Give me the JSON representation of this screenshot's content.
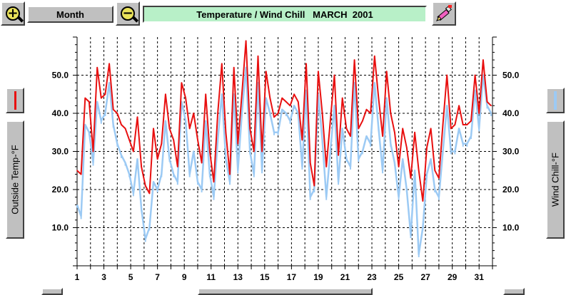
{
  "toolbar": {
    "month_label": "Month",
    "title": "Temperature / Wind Chill   MARCH  2001",
    "zoom_in_icon": "zoom-in-icon",
    "zoom_out_icon": "zoom-out-icon",
    "tool_icon": "pencil-paint-icon",
    "title_bg": "#b8f0c8"
  },
  "left_axis_button": {
    "label": "Outside Temp-°F",
    "color": "#e81010"
  },
  "right_axis_button": {
    "label": "Wind Chill-°F",
    "color": "#9ccaf4"
  },
  "chart_data": {
    "type": "line",
    "title": "Temperature / Wind Chill   MARCH  2001",
    "xlabel": "",
    "ylabel": "Outside Temp-°F",
    "ylabel_right": "Wind Chill-°F",
    "xlim": [
      1,
      32
    ],
    "ylim": [
      0,
      60
    ],
    "x_ticks": [
      "1",
      "3",
      "5",
      "7",
      "9",
      "11",
      "13",
      "15",
      "17",
      "19",
      "21",
      "23",
      "25",
      "27",
      "29",
      "31"
    ],
    "y_ticks": [
      "10.0",
      "20.0",
      "30.0",
      "40.0",
      "50.0"
    ],
    "grid": true,
    "series": [
      {
        "name": "Outside Temp-°F",
        "color": "#e81010",
        "x": [
          1.0,
          1.3,
          1.6,
          1.9,
          2.2,
          2.5,
          2.8,
          3.1,
          3.4,
          3.7,
          4.0,
          4.3,
          4.6,
          4.9,
          5.2,
          5.5,
          5.8,
          6.1,
          6.4,
          6.7,
          7.0,
          7.3,
          7.6,
          7.9,
          8.2,
          8.5,
          8.8,
          9.1,
          9.4,
          9.7,
          10.0,
          10.3,
          10.6,
          10.9,
          11.2,
          11.5,
          11.8,
          12.1,
          12.4,
          12.7,
          13.0,
          13.3,
          13.6,
          13.9,
          14.2,
          14.5,
          14.8,
          15.1,
          15.4,
          15.7,
          16.0,
          16.3,
          16.6,
          16.9,
          17.2,
          17.5,
          17.8,
          18.1,
          18.4,
          18.7,
          19.0,
          19.3,
          19.6,
          19.9,
          20.2,
          20.5,
          20.8,
          21.1,
          21.4,
          21.7,
          22.0,
          22.3,
          22.6,
          22.9,
          23.2,
          23.5,
          23.8,
          24.1,
          24.4,
          24.7,
          25.0,
          25.3,
          25.6,
          25.9,
          26.2,
          26.5,
          26.8,
          27.1,
          27.4,
          27.7,
          28.0,
          28.3,
          28.6,
          28.9,
          29.2,
          29.5,
          29.8,
          30.1,
          30.4,
          30.7,
          31.0,
          31.3,
          31.6,
          31.9
        ],
        "values": [
          25,
          24,
          44,
          43,
          30,
          52,
          44,
          45,
          53,
          41,
          40,
          37,
          36,
          33,
          30,
          39,
          26,
          21,
          19,
          36,
          28,
          32,
          45,
          36,
          33,
          26,
          48,
          44,
          36,
          40,
          33,
          27,
          45,
          30,
          22,
          40,
          53,
          35,
          24,
          52,
          32,
          45,
          59,
          36,
          30,
          55,
          30,
          51,
          44,
          39,
          40,
          44,
          43,
          42,
          45,
          43,
          33,
          53,
          27,
          21,
          51,
          40,
          26,
          38,
          50,
          29,
          44,
          36,
          34,
          54,
          36,
          38,
          41,
          40,
          55,
          44,
          34,
          51,
          40,
          35,
          26,
          36,
          31,
          23,
          35,
          25,
          17,
          31,
          36,
          25,
          23,
          37,
          50,
          36,
          37,
          42,
          37,
          37,
          38,
          50,
          40,
          54,
          43,
          42
        ]
      },
      {
        "name": "Wind Chill-°F",
        "color": "#9ccaf4",
        "x": [
          1.0,
          1.3,
          1.6,
          1.9,
          2.2,
          2.5,
          2.8,
          3.1,
          3.4,
          3.7,
          4.0,
          4.3,
          4.6,
          4.9,
          5.2,
          5.5,
          5.8,
          6.1,
          6.4,
          6.7,
          7.0,
          7.3,
          7.6,
          7.9,
          8.2,
          8.5,
          8.8,
          9.1,
          9.4,
          9.7,
          10.0,
          10.3,
          10.6,
          10.9,
          11.2,
          11.5,
          11.8,
          12.1,
          12.4,
          12.7,
          13.0,
          13.3,
          13.6,
          13.9,
          14.2,
          14.5,
          14.8,
          15.1,
          15.4,
          15.7,
          16.0,
          16.3,
          16.6,
          16.9,
          17.2,
          17.5,
          17.8,
          18.1,
          18.4,
          18.7,
          19.0,
          19.3,
          19.6,
          19.9,
          20.2,
          20.5,
          20.8,
          21.1,
          21.4,
          21.7,
          22.0,
          22.3,
          22.6,
          22.9,
          23.2,
          23.5,
          23.8,
          24.1,
          24.4,
          24.7,
          25.0,
          25.3,
          25.6,
          25.9,
          26.2,
          26.5,
          26.8,
          27.1,
          27.4,
          27.7,
          28.0,
          28.3,
          28.6,
          28.9,
          29.2,
          29.5,
          29.8,
          30.1,
          30.4,
          30.7,
          31.0,
          31.3,
          31.6,
          31.9
        ],
        "values": [
          16,
          13,
          37,
          35,
          27,
          43,
          38,
          40,
          48,
          37,
          32,
          29,
          27,
          24,
          19,
          28,
          15,
          7,
          10,
          22,
          20,
          24,
          38,
          28,
          24,
          22,
          43,
          38,
          24,
          30,
          22,
          20,
          38,
          24,
          18,
          33,
          45,
          28,
          22,
          45,
          25,
          40,
          52,
          30,
          24,
          48,
          25,
          44,
          40,
          35,
          35,
          41,
          40,
          38,
          42,
          40,
          26,
          46,
          18,
          20,
          45,
          33,
          18,
          30,
          42,
          22,
          36,
          28,
          26,
          48,
          28,
          30,
          34,
          32,
          48,
          36,
          25,
          44,
          32,
          27,
          18,
          28,
          20,
          8,
          25,
          3,
          10,
          24,
          28,
          20,
          18,
          30,
          42,
          30,
          30,
          36,
          32,
          32,
          34,
          46,
          36,
          50,
          42,
          40
        ]
      }
    ]
  }
}
